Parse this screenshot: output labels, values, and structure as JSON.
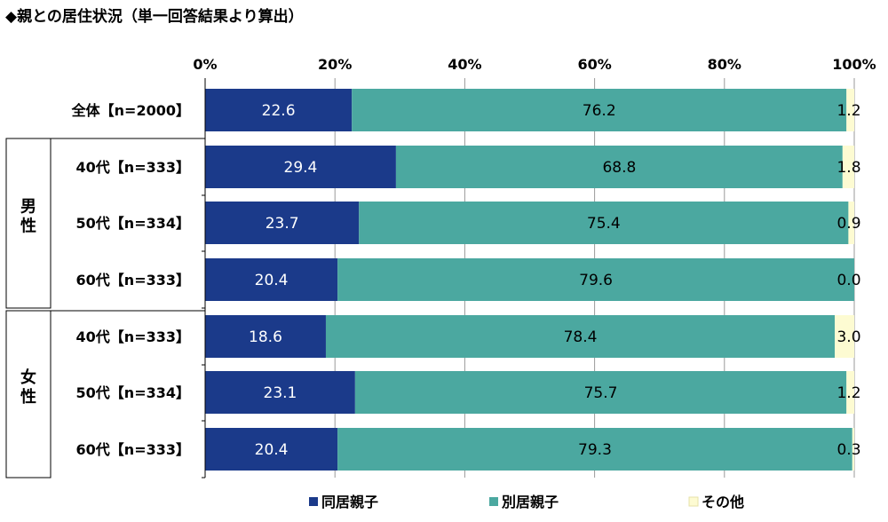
{
  "chart_data": {
    "type": "bar",
    "orientation": "horizontal",
    "stacked": true,
    "title": "◆親との居住状況（単一回答結果より算出）",
    "xlim": [
      0,
      100
    ],
    "x_ticks": [
      "0%",
      "20%",
      "40%",
      "60%",
      "80%",
      "100%"
    ],
    "groups": [
      {
        "label": "",
        "rows": [
          0
        ]
      },
      {
        "label": "男性",
        "rows": [
          1,
          2,
          3
        ]
      },
      {
        "label": "女性",
        "rows": [
          4,
          5,
          6
        ]
      }
    ],
    "categories": [
      "全体【n=2000】",
      "40代【n=333】",
      "50代【n=334】",
      "60代【n=333】",
      "40代【n=333】",
      "50代【n=334】",
      "60代【n=333】"
    ],
    "series": [
      {
        "name": "同居親子",
        "color": "#1b3a8a",
        "values": [
          22.6,
          29.4,
          23.7,
          20.4,
          18.6,
          23.1,
          20.4
        ],
        "labels": [
          "22.6",
          "29.4",
          "23.7",
          "20.4",
          "18.6",
          "23.1",
          "20.4"
        ]
      },
      {
        "name": "別居親子",
        "color": "#4ba8a0",
        "values": [
          76.2,
          68.8,
          75.4,
          79.6,
          78.4,
          75.7,
          79.3
        ],
        "labels": [
          "76.2",
          "68.8",
          "75.4",
          "79.6",
          "78.4",
          "75.7",
          "79.3"
        ]
      },
      {
        "name": "その他",
        "color": "#fdfbd2",
        "values": [
          1.2,
          1.8,
          0.9,
          0.0,
          3.0,
          1.2,
          0.3
        ],
        "labels": [
          "1.2",
          "1.8",
          "0.9",
          "0.0",
          "3.0",
          "1.2",
          "0.3"
        ]
      }
    ],
    "grid": true,
    "legend_position": "bottom"
  }
}
